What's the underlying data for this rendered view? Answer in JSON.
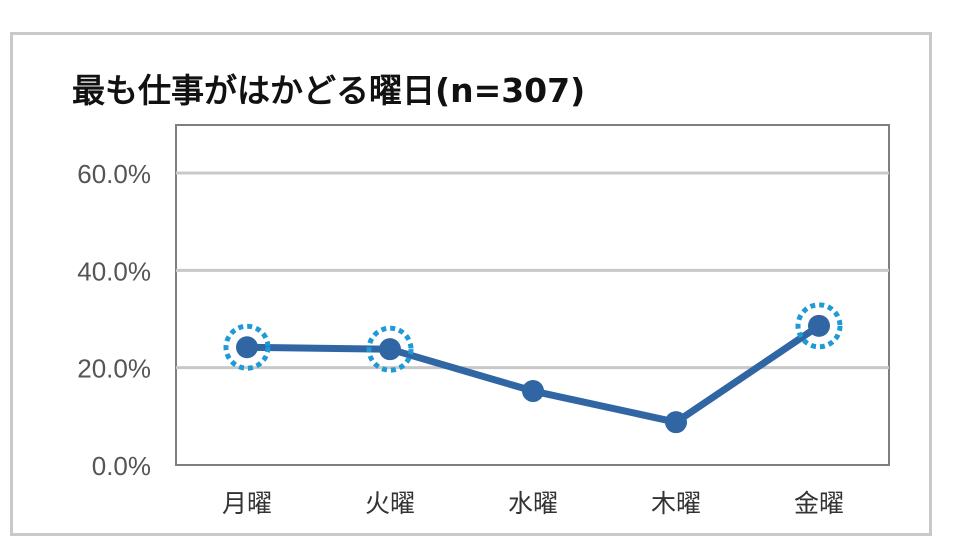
{
  "colors": {
    "line": "#2f66a3",
    "highlight_ring": "#1e9ad6",
    "grid": "#c8c8c8",
    "plot_border": "#7f7f7f"
  },
  "chart_data": {
    "type": "line",
    "title": "最も仕事がはかどる曜日(n=307)",
    "categories": [
      "月曜",
      "火曜",
      "水曜",
      "木曜",
      "金曜"
    ],
    "series": [
      {
        "values": [
          24.2,
          23.8,
          15.2,
          8.8,
          28.6
        ]
      }
    ],
    "highlighted": [
      true,
      true,
      false,
      false,
      true
    ],
    "ylim": [
      0,
      60
    ],
    "yticks": [
      0,
      20,
      40,
      60
    ],
    "ytick_labels": [
      "0.0%",
      "20.0%",
      "40.0%",
      "60.0%"
    ],
    "xlabel": "",
    "ylabel": "",
    "grid": true
  }
}
